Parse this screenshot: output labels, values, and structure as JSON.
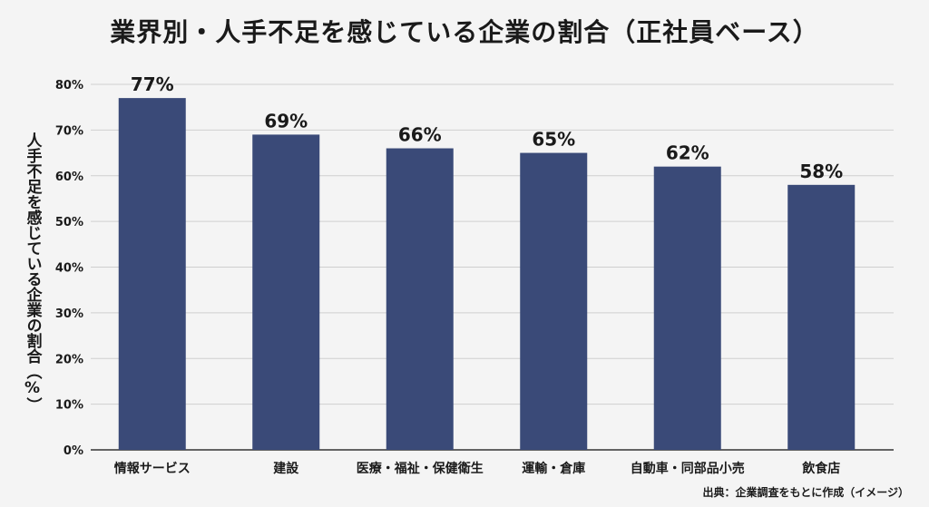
{
  "chart_data": {
    "type": "bar",
    "title": "業界別・人手不足を感じている企業の割合（正社員ベース）",
    "ylabel": "人手不足を感じている企業の割合（%）",
    "xlabel": "",
    "categories": [
      "情報サービス",
      "建設",
      "医療・福祉・保健衛生",
      "運輸・倉庫",
      "自動車・同部品小売",
      "飲食店"
    ],
    "values": [
      77,
      69,
      66,
      65,
      62,
      58
    ],
    "value_labels": [
      "77%",
      "69%",
      "66%",
      "65%",
      "62%",
      "58%"
    ],
    "ylim": [
      0,
      80
    ],
    "yticks": [
      0,
      10,
      20,
      30,
      40,
      50,
      60,
      70,
      80
    ],
    "ytick_labels": [
      "0%",
      "10%",
      "20%",
      "30%",
      "40%",
      "50%",
      "60%",
      "70%",
      "80%"
    ],
    "grid": true,
    "legend": "none",
    "bar_color": "#3a4a78",
    "source": "出典：企業調査をもとに作成（イメージ）"
  }
}
